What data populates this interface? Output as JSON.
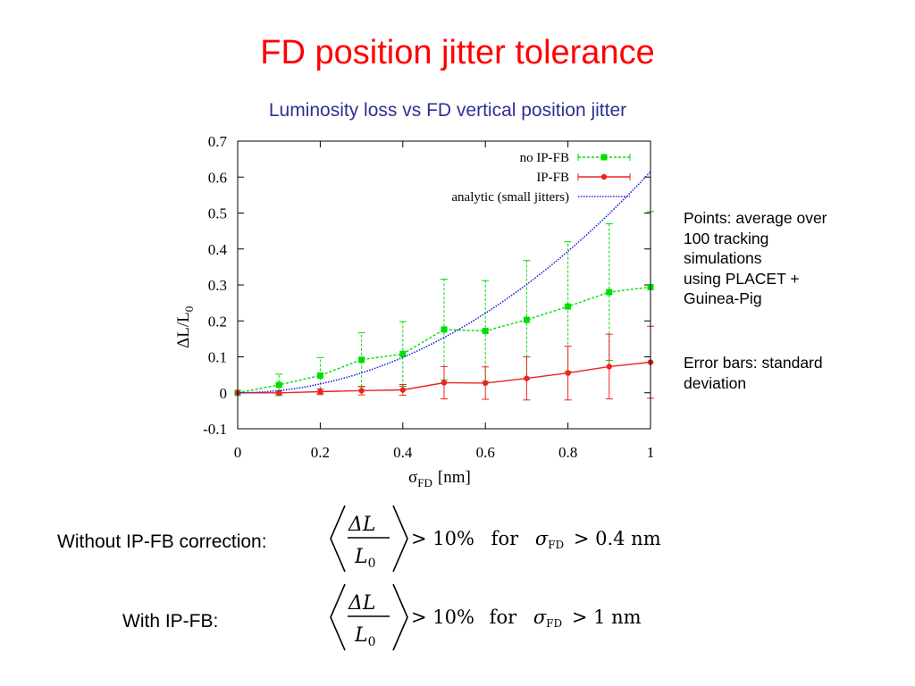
{
  "slide": {
    "title": "FD position jitter tolerance",
    "subtitle": "Luminosity loss vs FD vertical position jitter"
  },
  "notes": {
    "points_text": "Points: average over 100 tracking simulations using PLACET + Guinea-Pig",
    "points_lines": [
      "Points: average over",
      "100 tracking",
      "simulations",
      "using PLACET +",
      "Guinea-Pig"
    ],
    "errors_lines": [
      "Error bars: standard",
      "deviation"
    ]
  },
  "conditions": [
    {
      "label": "Without IP-FB correction:",
      "fraction_num": "ΔL",
      "fraction_den": "L",
      "fraction_den_sub": "0",
      "gt1": ">",
      "percent": "10%",
      "for_word": "for",
      "sigma": "σ",
      "sigma_sub": "FD",
      "gt2": ">",
      "threshold": "0.4 nm"
    },
    {
      "label": "With IP-FB:",
      "fraction_num": "ΔL",
      "fraction_den": "L",
      "fraction_den_sub": "0",
      "gt1": ">",
      "percent": "10%",
      "for_word": "for",
      "sigma": "σ",
      "sigma_sub": "FD",
      "gt2": ">",
      "threshold": "1 nm"
    }
  ],
  "chart_data": {
    "type": "line",
    "title": "",
    "xlabel": "σ",
    "xlabel_sub": "FD",
    "xlabel_unit": "[nm]",
    "ylabel": "ΔL/L",
    "ylabel_sub": "0",
    "xlim": [
      0,
      1
    ],
    "ylim": [
      -0.1,
      0.7
    ],
    "xticks": [
      0,
      0.2,
      0.4,
      0.6,
      0.8,
      1
    ],
    "xtick_labels": [
      "0",
      "0.2",
      "0.4",
      "0.6",
      "0.8",
      "1"
    ],
    "yticks": [
      -0.1,
      0,
      0.1,
      0.2,
      0.3,
      0.4,
      0.5,
      0.6,
      0.7
    ],
    "ytick_labels": [
      "-0.1",
      "0",
      "0.1",
      "0.2",
      "0.3",
      "0.4",
      "0.5",
      "0.6",
      "0.7"
    ],
    "legend_position": "top-right",
    "series": [
      {
        "name": "no IP-FB",
        "color": "#00dd00",
        "marker": "square",
        "line": "dashed",
        "x": [
          0,
          0.1,
          0.2,
          0.3,
          0.4,
          0.5,
          0.6,
          0.7,
          0.8,
          0.9,
          1.0
        ],
        "y": [
          0.0,
          0.022,
          0.048,
          0.092,
          0.108,
          0.176,
          0.172,
          0.203,
          0.24,
          0.28,
          0.294
        ],
        "err": [
          0.0,
          0.03,
          0.05,
          0.075,
          0.09,
          0.14,
          0.14,
          0.165,
          0.18,
          0.19,
          0.21
        ]
      },
      {
        "name": "IP-FB",
        "color": "#ee2222",
        "marker": "circle",
        "line": "solid",
        "x": [
          0,
          0.1,
          0.2,
          0.3,
          0.4,
          0.5,
          0.6,
          0.7,
          0.8,
          0.9,
          1.0
        ],
        "y": [
          0.0,
          0.0,
          0.003,
          0.006,
          0.008,
          0.028,
          0.027,
          0.04,
          0.055,
          0.073,
          0.085
        ],
        "err": [
          0.0,
          0.005,
          0.008,
          0.012,
          0.015,
          0.045,
          0.045,
          0.06,
          0.075,
          0.09,
          0.1
        ]
      },
      {
        "name": "analytic (small jitters)",
        "color": "#2222dd",
        "marker": "none",
        "line": "dotted",
        "x": [
          0,
          0.1,
          0.2,
          0.3,
          0.4,
          0.5,
          0.6,
          0.7,
          0.8,
          0.9,
          1.0
        ],
        "y": [
          0.0,
          0.006,
          0.025,
          0.055,
          0.098,
          0.154,
          0.221,
          0.301,
          0.394,
          0.498,
          0.615
        ]
      }
    ]
  }
}
